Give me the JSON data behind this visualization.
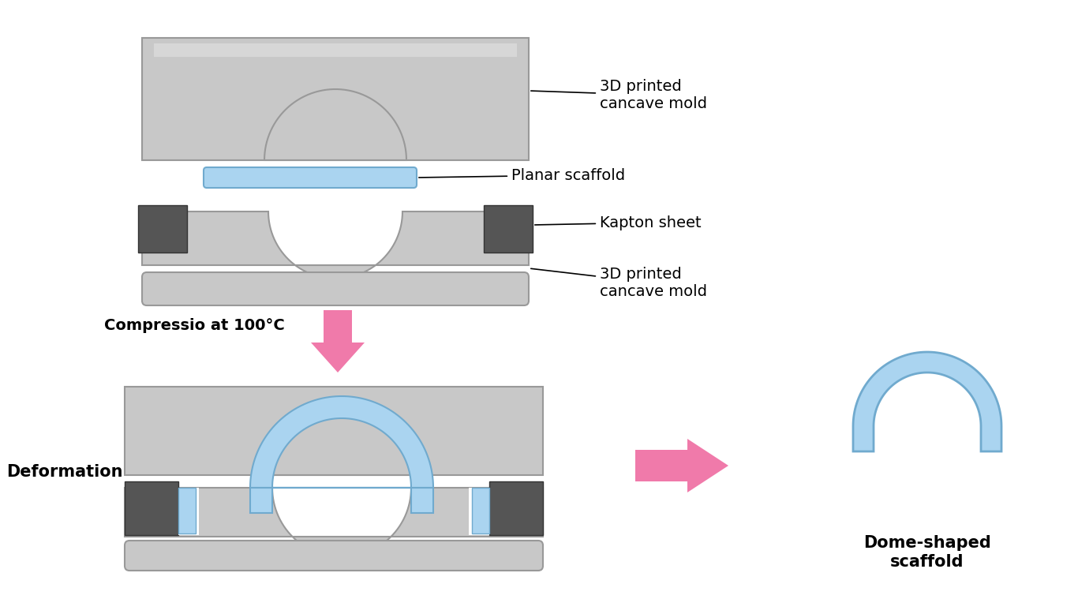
{
  "bg_color": "#ffffff",
  "gray_color": "#c8c8c8",
  "gray_edge": "#999999",
  "gray_light": "#d8d8d8",
  "blue_color": "#aad4f0",
  "blue_edge": "#70aace",
  "dark_color": "#555555",
  "dark_edge": "#333333",
  "pink_color": "#f07aaa",
  "black": "#000000",
  "white": "#ffffff",
  "label_3d_1": "3D printed\ncancave mold",
  "label_planar": "Planar scaffold",
  "label_kapton": "Kapton sheet",
  "label_3d_2": "3D printed\ncancave mold",
  "label_compress": "Compressio at 100°C",
  "label_deform": "Deformation",
  "label_dome": "Dome-shaped\nscaffold"
}
